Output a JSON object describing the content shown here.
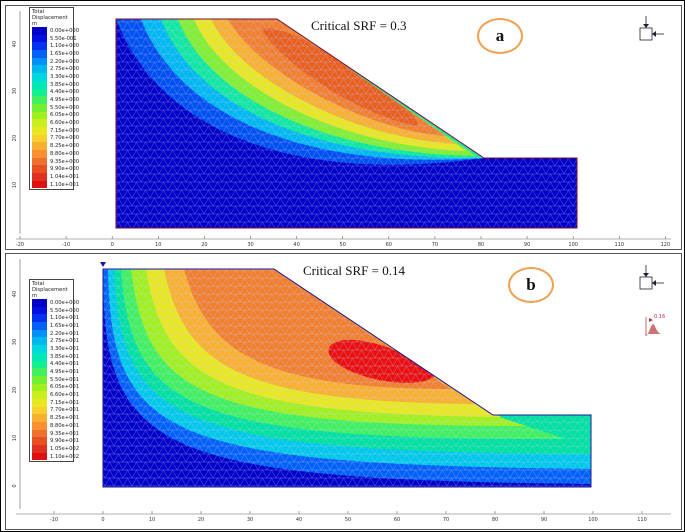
{
  "panels": [
    {
      "id": "a",
      "label": "a",
      "srf_text": "Critical SRF = 0.3",
      "legend": {
        "title_line1": "Total",
        "title_line2": "Displacement",
        "unit": "m",
        "values": [
          "0.00e+000",
          "5.50e-001",
          "1.10e+000",
          "1.65e+000",
          "2.20e+000",
          "2.75e+000",
          "3.30e+000",
          "3.85e+000",
          "4.40e+000",
          "4.95e+000",
          "5.50e+000",
          "6.05e+000",
          "6.60e+000",
          "7.15e+000",
          "7.70e+000",
          "8.25e+000",
          "8.80e+000",
          "9.35e+000",
          "9.90e+000",
          "1.04e+001",
          "1.10e+001"
        ]
      },
      "x_ticks": [
        "-20",
        "-10",
        "0",
        "10",
        "20",
        "30",
        "40",
        "50",
        "60",
        "70",
        "80",
        "90",
        "100",
        "110",
        "120"
      ],
      "y_ticks": [
        "40",
        "30",
        "20",
        "10"
      ]
    },
    {
      "id": "b",
      "label": "b",
      "srf_text": "Critical SRF = 0.14",
      "legend": {
        "title_line1": "Total",
        "title_line2": "Displacement",
        "unit": "m",
        "values": [
          "0.00e+000",
          "5.50e+000",
          "1.10e+001",
          "1.65e+001",
          "2.20e+001",
          "2.75e+001",
          "3.30e+001",
          "3.85e+001",
          "4.40e+001",
          "4.95e+001",
          "5.50e+001",
          "6.05e+001",
          "6.60e+001",
          "7.15e+001",
          "7.70e+001",
          "8.25e+001",
          "8.80e+001",
          "9.35e+001",
          "9.90e+001",
          "1.05e+002",
          "1.10e+002"
        ]
      },
      "histogram_label": "0.16",
      "x_ticks": [
        "-10",
        "0",
        "10",
        "20",
        "30",
        "40",
        "50",
        "60",
        "70",
        "80",
        "90",
        "100",
        "110"
      ],
      "y_ticks": [
        "40",
        "30",
        "20",
        "10",
        "0"
      ]
    }
  ],
  "colors": {
    "scale": [
      "#0000c8",
      "#0010e0",
      "#0030f0",
      "#0060f8",
      "#0090f8",
      "#00b8f0",
      "#00d8e0",
      "#00e8b8",
      "#10f090",
      "#40f060",
      "#70f030",
      "#a0f020",
      "#c8f020",
      "#e8e820",
      "#f8d030",
      "#f8b030",
      "#f89030",
      "#f07030",
      "#e85020",
      "#e03020",
      "#e01010"
    ],
    "mesh": "#c8c8ff",
    "outline": "#7a1030",
    "badge_ring": "#f0a050"
  },
  "icons": [
    "boundary-condition-icon",
    "histogram-icon",
    "point-marker-icon"
  ]
}
